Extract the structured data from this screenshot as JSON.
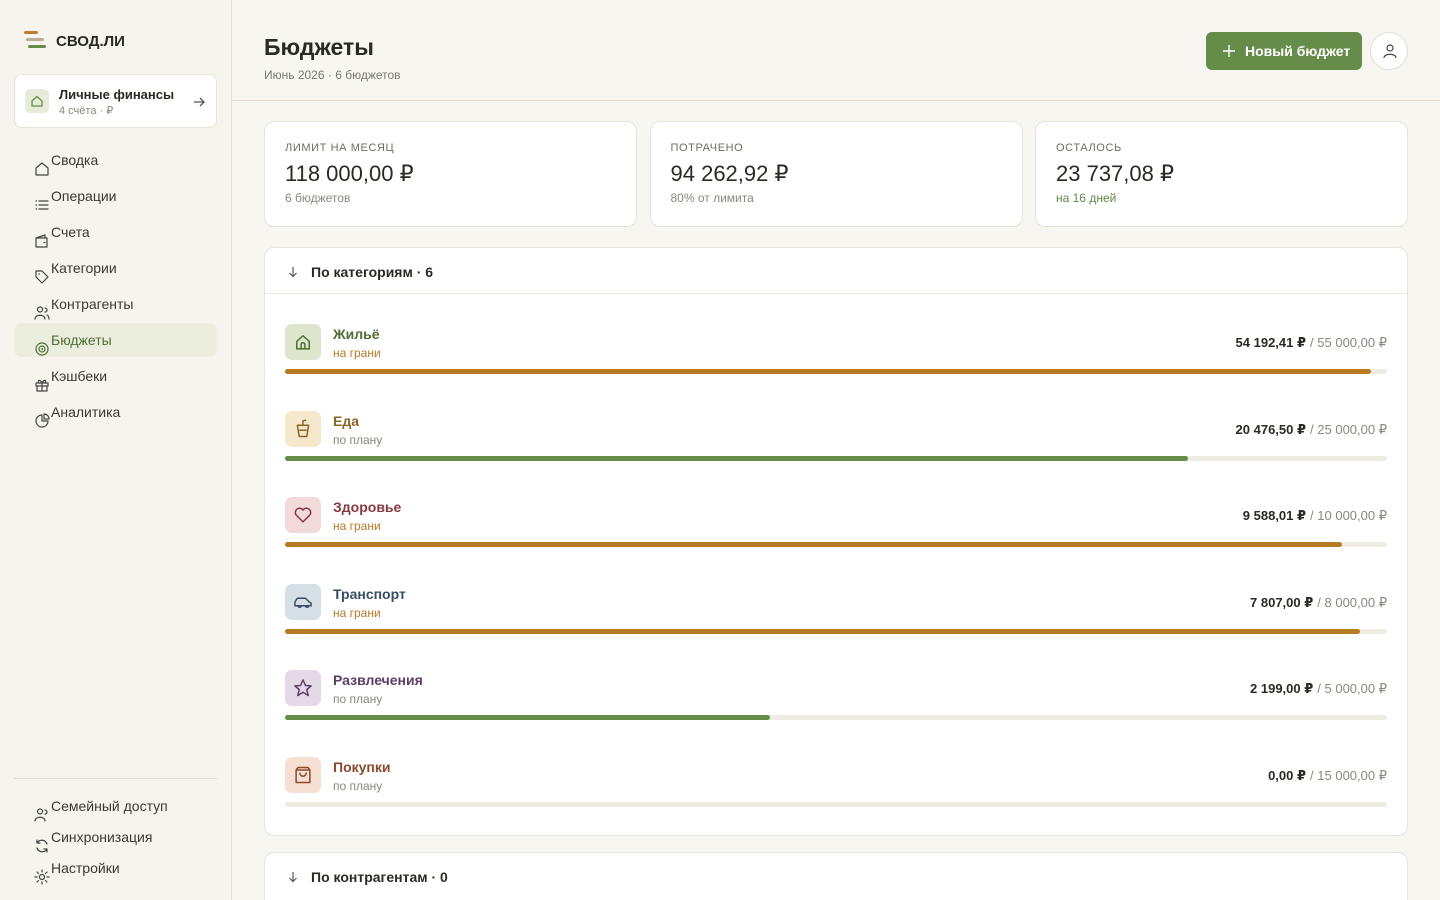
{
  "brand": "СВОД.ЛИ",
  "workspace": {
    "name": "Личные финансы",
    "meta": "4 счёта · ₽"
  },
  "nav": [
    "Сводка",
    "Операции",
    "Счета",
    "Категории",
    "Контрагенты",
    "Бюджеты",
    "Кэшбеки",
    "Аналитика"
  ],
  "nav_active": 5,
  "footer_nav": [
    "Семейный доступ",
    "Синхронизация",
    "Настройки"
  ],
  "header": {
    "title": "Бюджеты",
    "subtitle": "Июнь 2026 · 6 бюджетов",
    "button": "Новый бюджет"
  },
  "stats": [
    {
      "label": "ЛИМИТ НА МЕСЯЦ",
      "value": "118 000,00 ₽",
      "note": "6 бюджетов",
      "note_color": "#8a877c"
    },
    {
      "label": "ПОТРАЧЕНО",
      "value": "94 262,92 ₽",
      "note": "80% от лимита",
      "note_color": "#8a877c"
    },
    {
      "label": "ОСТАЛОСЬ",
      "value": "23 737,08 ₽",
      "note": "на 16 дней",
      "note_color": "#5f8a45"
    }
  ],
  "budgets": {
    "title": "По категориям · 6",
    "items": [
      {
        "name": "Жильё",
        "status": "на грани",
        "spent": {
          "value": 54192.41,
          "label": "54 192,41 ₽"
        },
        "limit": {
          "value": 55000,
          "label": "/ 55 000,00 ₽"
        },
        "bar_color": "#b57a22",
        "status_color": "#b57a22",
        "name_color": "#4f6c35",
        "icon_bg": "#dde5cc"
      },
      {
        "name": "Еда",
        "status": "по плану",
        "spent": {
          "value": 20476.5,
          "label": "20 476,50 ₽"
        },
        "limit": {
          "value": 25000,
          "label": "/ 25 000,00 ₽"
        },
        "bar_color": "#668c4a",
        "status_color": "#8a877c",
        "name_color": "#8a6626",
        "icon_bg": "#f5e8cc"
      },
      {
        "name": "Здоровье",
        "status": "на грани",
        "spent": {
          "value": 9588.01,
          "label": "9 588,01 ₽"
        },
        "limit": {
          "value": 10000,
          "label": "/ 10 000,00 ₽"
        },
        "bar_color": "#b57a22",
        "status_color": "#b57a22",
        "name_color": "#873841",
        "icon_bg": "#f2d9da"
      },
      {
        "name": "Транспорт",
        "status": "на грани",
        "spent": {
          "value": 7807,
          "label": "7 807,00 ₽"
        },
        "limit": {
          "value": 8000,
          "label": "/ 8 000,00 ₽"
        },
        "bar_color": "#b57a22",
        "status_color": "#b57a22",
        "name_color": "#3a4e63",
        "icon_bg": "#d5dfe6"
      },
      {
        "name": "Развлечения",
        "status": "по плану",
        "spent": {
          "value": 2199,
          "label": "2 199,00 ₽"
        },
        "limit": {
          "value": 5000,
          "label": "/ 5 000,00 ₽"
        },
        "bar_color": "#668c4a",
        "status_color": "#8a877c",
        "name_color": "#5a3d68",
        "icon_bg": "#e4d9e6"
      },
      {
        "name": "Покупки",
        "status": "по плану",
        "spent": {
          "value": 0,
          "label": "0,00 ₽"
        },
        "limit": {
          "value": 15000,
          "label": "/ 15 000,00 ₽"
        },
        "bar_color": "#668c4a",
        "status_color": "#8a877c",
        "name_color": "#8a4a2e",
        "icon_bg": "#f6dfd3"
      }
    ]
  },
  "counterparties": {
    "title": "По контрагентам · 0"
  }
}
